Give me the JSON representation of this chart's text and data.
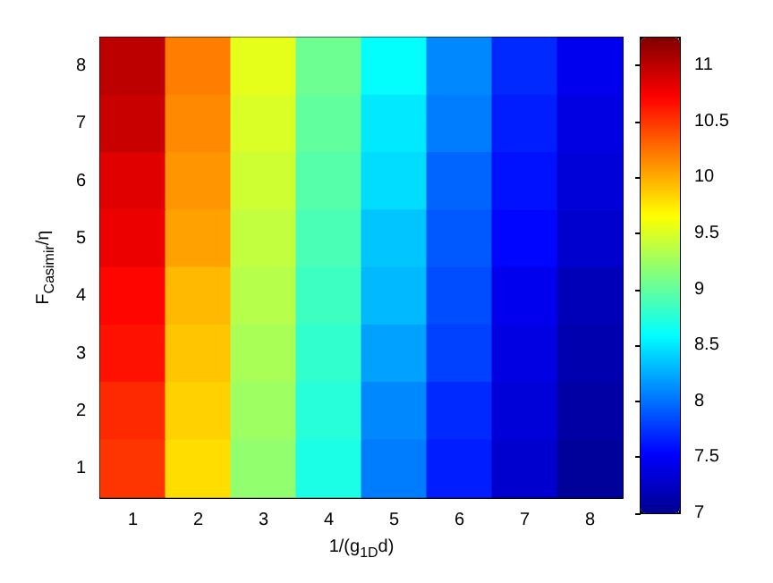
{
  "chart_data": {
    "type": "heatmap",
    "xlabel": "1/(g$_{1D}$d)",
    "ylabel": "F$_{Casimir}$/η",
    "categories": [
      "1",
      "2",
      "3",
      "4",
      "5",
      "6",
      "7",
      "8"
    ],
    "y_categories": [
      "8",
      "7",
      "6",
      "5",
      "4",
      "3",
      "2",
      "1"
    ],
    "cells": [
      [
        11.0,
        10.2,
        9.55,
        9.05,
        8.6,
        8.1,
        7.7,
        7.45
      ],
      [
        10.95,
        10.15,
        9.5,
        9.0,
        8.5,
        8.05,
        7.65,
        7.4
      ],
      [
        10.85,
        10.1,
        9.45,
        8.95,
        8.45,
        7.95,
        7.6,
        7.35
      ],
      [
        10.8,
        10.05,
        9.4,
        8.9,
        8.35,
        7.9,
        7.55,
        7.3
      ],
      [
        10.7,
        9.95,
        9.35,
        8.85,
        8.3,
        7.85,
        7.45,
        7.2
      ],
      [
        10.65,
        9.9,
        9.3,
        8.8,
        8.2,
        7.8,
        7.4,
        7.15
      ],
      [
        10.55,
        9.85,
        9.25,
        8.75,
        8.1,
        7.7,
        7.35,
        7.1
      ],
      [
        10.5,
        9.8,
        9.2,
        8.7,
        8.05,
        7.65,
        7.3,
        7.05
      ]
    ],
    "clim": [
      7,
      11.25
    ],
    "cticks": [
      7,
      7.5,
      8,
      8.5,
      9,
      9.5,
      10,
      10.5,
      11
    ]
  }
}
